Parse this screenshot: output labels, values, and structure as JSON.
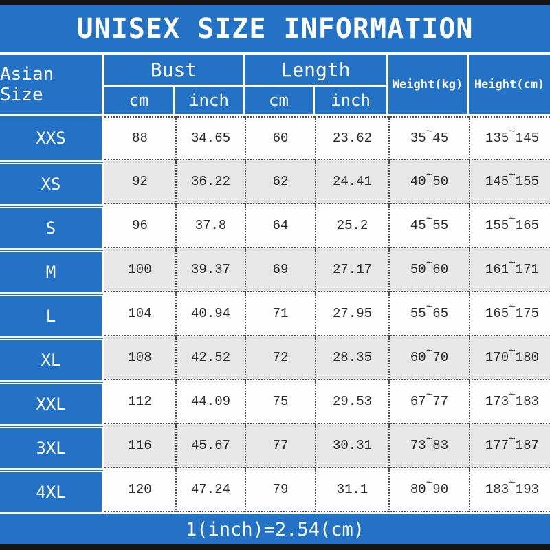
{
  "title": "UNISEX SIZE INFORMATION",
  "footer_note": "1(inch)=2.54(cm)",
  "tilde": "~",
  "header": {
    "size_col": "Asian Size",
    "bust": "Bust",
    "length": "Length",
    "cm": "cm",
    "inch": "inch",
    "weight": "Weight(kg)",
    "height": "Height(cm)"
  },
  "colors": {
    "blue": "#2372c6",
    "alt_row_gray": "#e7e7e7",
    "text_dark": "#2b2b2b",
    "bar_black": "#141414"
  },
  "chart_data": {
    "type": "table",
    "title": "UNISEX SIZE INFORMATION",
    "columns": [
      "Asian Size",
      "Bust cm",
      "Bust inch",
      "Length cm",
      "Length inch",
      "Weight(kg)",
      "Height(cm)"
    ],
    "note": "1(inch)=2.54(cm)",
    "rows": [
      {
        "size": "XXS",
        "bust_cm": "88",
        "bust_inch": "34.65",
        "len_cm": "60",
        "len_inch": "23.62",
        "w_min": "35",
        "w_max": "45",
        "h_min": "135",
        "h_max": "145"
      },
      {
        "size": "XS",
        "bust_cm": "92",
        "bust_inch": "36.22",
        "len_cm": "62",
        "len_inch": "24.41",
        "w_min": "40",
        "w_max": "50",
        "h_min": "145",
        "h_max": "155"
      },
      {
        "size": "S",
        "bust_cm": "96",
        "bust_inch": "37.8",
        "len_cm": "64",
        "len_inch": "25.2",
        "w_min": "45",
        "w_max": "55",
        "h_min": "155",
        "h_max": "165"
      },
      {
        "size": "M",
        "bust_cm": "100",
        "bust_inch": "39.37",
        "len_cm": "69",
        "len_inch": "27.17",
        "w_min": "50",
        "w_max": "60",
        "h_min": "161",
        "h_max": "171"
      },
      {
        "size": "L",
        "bust_cm": "104",
        "bust_inch": "40.94",
        "len_cm": "71",
        "len_inch": "27.95",
        "w_min": "55",
        "w_max": "65",
        "h_min": "165",
        "h_max": "175"
      },
      {
        "size": "XL",
        "bust_cm": "108",
        "bust_inch": "42.52",
        "len_cm": "72",
        "len_inch": "28.35",
        "w_min": "60",
        "w_max": "70",
        "h_min": "170",
        "h_max": "180"
      },
      {
        "size": "XXL",
        "bust_cm": "112",
        "bust_inch": "44.09",
        "len_cm": "75",
        "len_inch": "29.53",
        "w_min": "67",
        "w_max": "77",
        "h_min": "173",
        "h_max": "183"
      },
      {
        "size": "3XL",
        "bust_cm": "116",
        "bust_inch": "45.67",
        "len_cm": "77",
        "len_inch": "30.31",
        "w_min": "73",
        "w_max": "83",
        "h_min": "177",
        "h_max": "187"
      },
      {
        "size": "4XL",
        "bust_cm": "120",
        "bust_inch": "47.24",
        "len_cm": "79",
        "len_inch": "31.1",
        "w_min": "80",
        "w_max": "90",
        "h_min": "183",
        "h_max": "193"
      }
    ]
  }
}
